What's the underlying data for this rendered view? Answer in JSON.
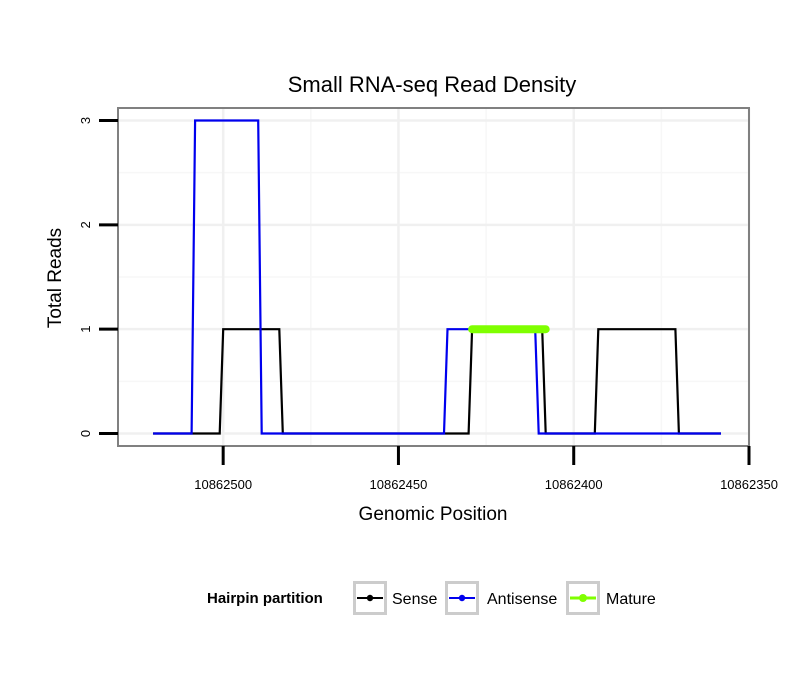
{
  "chart_data": {
    "type": "line",
    "title": "Small RNA-seq Read Density",
    "xlabel": "Genomic Position",
    "ylabel": "Total Reads",
    "x_reversed": true,
    "xlim": [
      10862530,
      10862350
    ],
    "ylim": [
      -0.12,
      3.12
    ],
    "x_ticks": [
      10862500,
      10862450,
      10862400,
      10862350
    ],
    "x_tick_labels": [
      "10862500",
      "10862450",
      "10862400",
      "10862350"
    ],
    "y_ticks": [
      0,
      1,
      2,
      3
    ],
    "y_tick_labels": [
      "0",
      "1",
      "2",
      "3"
    ],
    "grid": true,
    "legend_position": "bottom",
    "legend_title": "Hairpin partition",
    "series": [
      {
        "name": "Sense",
        "color": "#000000",
        "points": [
          [
            10862520,
            0
          ],
          [
            10862501,
            0
          ],
          [
            10862500,
            1
          ],
          [
            10862484,
            1
          ],
          [
            10862483,
            0
          ],
          [
            10862430,
            0
          ],
          [
            10862429,
            1
          ],
          [
            10862409,
            1
          ],
          [
            10862408,
            0
          ],
          [
            10862394,
            0
          ],
          [
            10862393,
            1
          ],
          [
            10862371,
            1
          ],
          [
            10862370,
            0
          ],
          [
            10862358,
            0
          ]
        ]
      },
      {
        "name": "Antisense",
        "color": "#0000ee",
        "points": [
          [
            10862520,
            0
          ],
          [
            10862509,
            0
          ],
          [
            10862508,
            3
          ],
          [
            10862490,
            3
          ],
          [
            10862489,
            0
          ],
          [
            10862437,
            0
          ],
          [
            10862436,
            1
          ],
          [
            10862411,
            1
          ],
          [
            10862410,
            0
          ],
          [
            10862358,
            0
          ]
        ]
      },
      {
        "name": "Mature",
        "color": "#7fff00",
        "points": [
          [
            10862429,
            1
          ],
          [
            10862408,
            1
          ]
        ]
      }
    ]
  }
}
